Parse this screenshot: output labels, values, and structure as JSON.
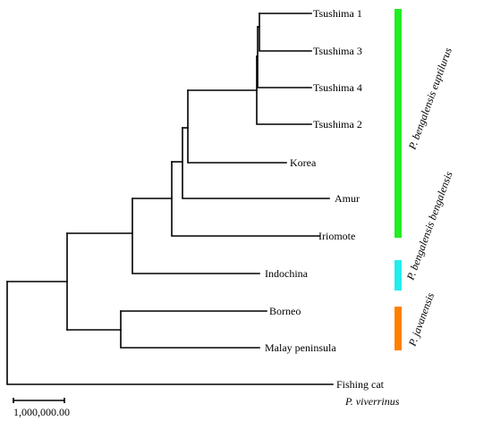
{
  "tree": {
    "leaves": [
      "Tsushima 1",
      "Tsushima 3",
      "Tsushima 4",
      "Tsushima 2",
      "Korea",
      "Amur",
      "Iriomote",
      "Indochina",
      "Borneo",
      "Malay peninsula",
      "Fishing cat"
    ],
    "outgroup_species_label": "P. viverrinus",
    "clade_groups": [
      {
        "label": "P. bengalensis euptilurus",
        "color": "#22ee22"
      },
      {
        "label": "P. bengalensis bengalensis",
        "color": "#22eeee"
      },
      {
        "label": "P. javanensis",
        "color": "#ff8000"
      }
    ],
    "scale_bar_label": "1,000,000.00"
  }
}
